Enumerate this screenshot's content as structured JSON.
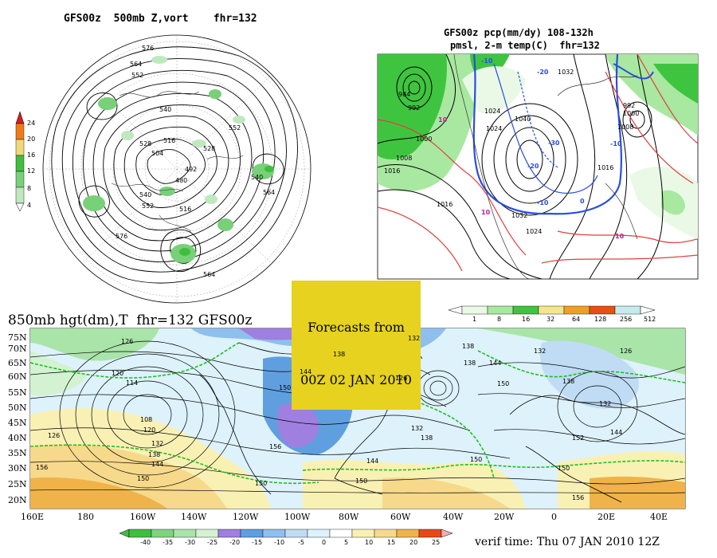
{
  "panels": {
    "polar": {
      "title": "GFS00z  500mb Z,vort    fhr=132",
      "colorbar_labels": [
        "24",
        "20",
        "16",
        "12",
        "8",
        "4"
      ],
      "colorbar_colors": [
        "#d41f1f",
        "#f07a1a",
        "#f2d67a",
        "#3fbf3f",
        "#78d078",
        "#bfe8bf"
      ],
      "contour_labels": [
        "576",
        "564",
        "552",
        "540",
        "528",
        "516",
        "504",
        "492",
        "480",
        "540",
        "552",
        "564",
        "576",
        "528",
        "540",
        "516",
        "552",
        "564"
      ]
    },
    "regional": {
      "title_line1": "GFS00z pcp(mm/dy) 108-132h",
      "title_line2": "pmsl, 2-m temp(C)  fhr=132",
      "contour_labels": [
        "992",
        "984",
        "1000",
        "1016",
        "1008",
        "1016",
        "1024",
        "1032",
        "1040",
        "1024",
        "1032",
        "1016",
        "1008",
        "1000",
        "992",
        "1024"
      ],
      "temp_labels": [
        "-10",
        "-20",
        "-30",
        "-20",
        "-10",
        "10",
        "10",
        "10",
        "-10",
        "0"
      ],
      "colorbar_labels": [
        "1",
        "8",
        "16",
        "32",
        "64",
        "128",
        "256",
        "512"
      ],
      "colorbar_colors": [
        "#e9f9e6",
        "#a8e8a0",
        "#3fc43f",
        "#f6e68a",
        "#f0a020",
        "#e85010",
        "#c4ecec",
        "#ffffff"
      ]
    },
    "forecast_stamp": {
      "line1": "Forecasts from",
      "line2": "00Z 02 JAN 2010"
    },
    "hemispheric": {
      "title": "850mb hgt(dm),T  fhr=132 GFS00z",
      "lat_labels": [
        "75N",
        "70N",
        "65N",
        "60N",
        "55N",
        "50N",
        "45N",
        "40N",
        "35N",
        "30N",
        "25N",
        "20N"
      ],
      "lon_labels": [
        "160E",
        "180",
        "160W",
        "140W",
        "120W",
        "100W",
        "80W",
        "60W",
        "40W",
        "20W",
        "0",
        "20E",
        "40E"
      ],
      "contour_labels": [
        "126",
        "120",
        "114",
        "108",
        "120",
        "126",
        "132",
        "138",
        "144",
        "150",
        "156",
        "150",
        "126",
        "132",
        "138",
        "144",
        "150",
        "156",
        "138",
        "132",
        "144",
        "150",
        "138",
        "132",
        "138",
        "144",
        "150",
        "152",
        "150",
        "156",
        "150",
        "144",
        "126",
        "132",
        "138"
      ],
      "colorbar_labels": [
        "-40",
        "-35",
        "-30",
        "-25",
        "-20",
        "-15",
        "-10",
        "-5",
        "0",
        "5",
        "10",
        "15",
        "20",
        "25"
      ],
      "colorbar_colors": [
        "#3fbf3f",
        "#7fd47f",
        "#a9e4a9",
        "#d2f2d2",
        "#9f7fe0",
        "#5f9fe0",
        "#8fbfee",
        "#bfdcf4",
        "#ddf2fb",
        "#ffffff",
        "#f9f1b4",
        "#f6d98a",
        "#efb34a",
        "#e87a28",
        "#e84818"
      ]
    },
    "verif": {
      "text": "verif time: Thu 07 JAN 2010 12Z"
    }
  }
}
